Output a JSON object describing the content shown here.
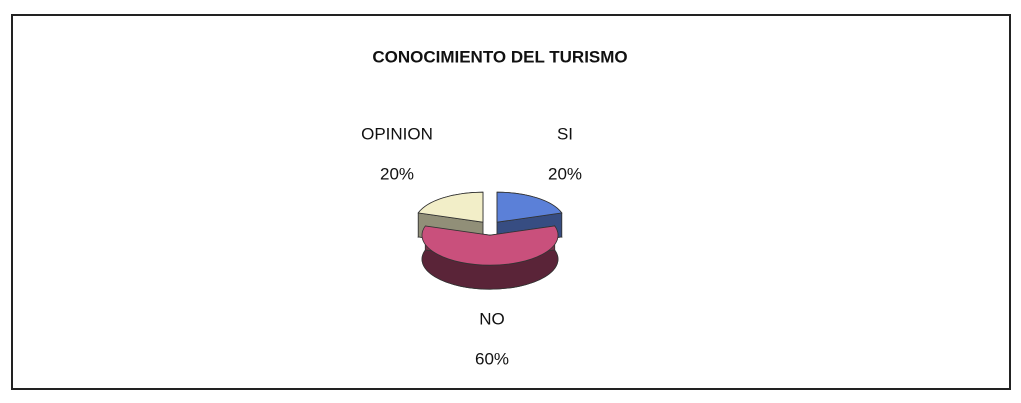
{
  "chart_data": {
    "type": "pie",
    "title": "CONOCIMIENTO DEL TURISMO",
    "categories": [
      "SI",
      "NO",
      "OPINION"
    ],
    "values": [
      20,
      60,
      20
    ],
    "value_labels": [
      "20%",
      "60%",
      "20%"
    ],
    "colors": [
      "#5b80d8",
      "#c9507c",
      "#f2eec8"
    ]
  }
}
